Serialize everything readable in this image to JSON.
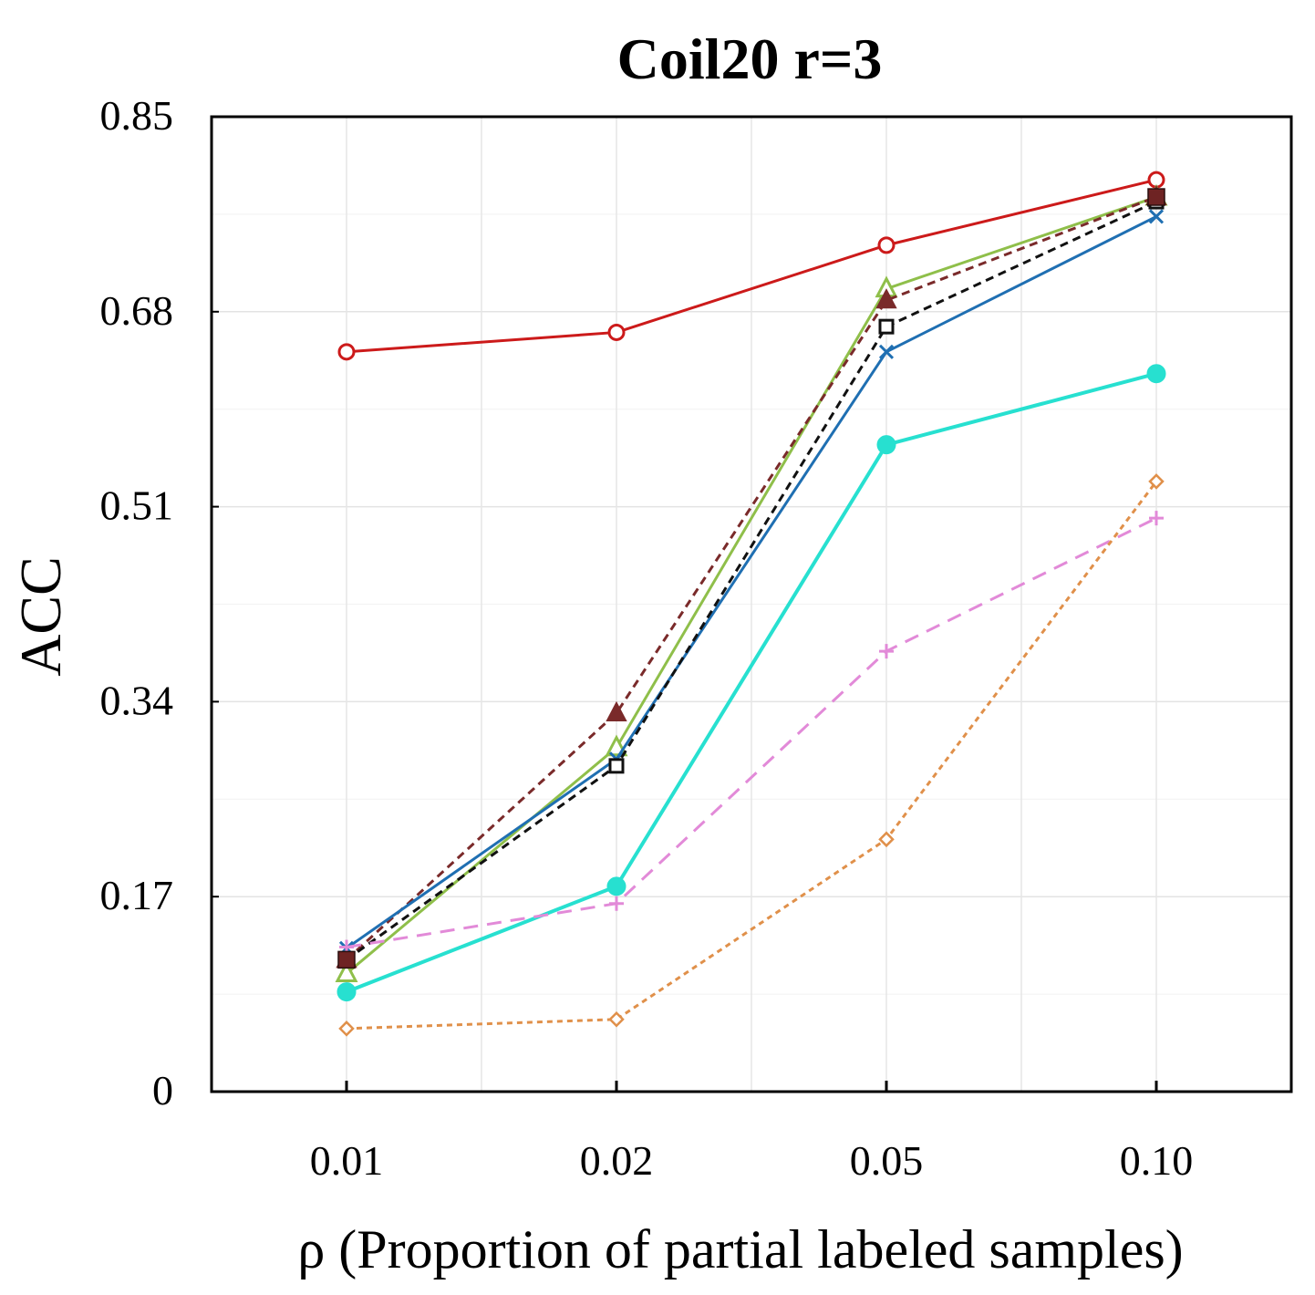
{
  "chart_data": {
    "type": "line",
    "title": "Coil20 r=3",
    "xlabel": "ρ (Proportion of partial labeled samples)",
    "ylabel": "ACC",
    "categories": [
      "0.01",
      "0.02",
      "0.05",
      "0.10"
    ],
    "yticks": [
      "0",
      "0.17",
      "0.34",
      "0.51",
      "0.68",
      "0.85"
    ],
    "ylim": [
      0,
      0.85
    ],
    "grid": true,
    "legend": "none",
    "series": [
      {
        "name": "red-circle",
        "color": "#cc1a1a",
        "dash": "solid",
        "marker": "circle-open",
        "values": [
          0.645,
          0.662,
          0.738,
          0.795
        ]
      },
      {
        "name": "green-triangle",
        "color": "#8fbf4a",
        "dash": "solid",
        "marker": "triangle-open",
        "values": [
          0.103,
          0.3,
          0.7,
          0.78
        ]
      },
      {
        "name": "brown-triangle",
        "color": "#7a2a2a",
        "dash": "dashed",
        "marker": "triangle-filled",
        "values": [
          0.115,
          0.33,
          0.69,
          0.78
        ]
      },
      {
        "name": "blue-x",
        "color": "#1f6fb2",
        "dash": "solid",
        "marker": "x",
        "values": [
          0.125,
          0.29,
          0.645,
          0.763
        ]
      },
      {
        "name": "black-square",
        "color": "#111111",
        "dash": "dashed",
        "marker": "square-open",
        "values": [
          0.115,
          0.284,
          0.667,
          0.776
        ]
      },
      {
        "name": "cyan-dot",
        "color": "#27e0d0",
        "dash": "solid",
        "marker": "dot",
        "values": [
          0.087,
          0.179,
          0.564,
          0.626
        ]
      },
      {
        "name": "pink-plus",
        "color": "#e28ad8",
        "dash": "longdash",
        "marker": "plus",
        "values": [
          0.126,
          0.164,
          0.384,
          0.5
        ]
      },
      {
        "name": "orange-diamond",
        "color": "#e0904a",
        "dash": "shortdash",
        "marker": "diamond-open",
        "values": [
          0.055,
          0.063,
          0.22,
          0.532
        ]
      },
      {
        "name": "maroon-square",
        "color": "#6e2323",
        "dash": "none",
        "marker": "square-filled",
        "values": [
          0.115,
          null,
          null,
          0.78
        ]
      }
    ]
  }
}
